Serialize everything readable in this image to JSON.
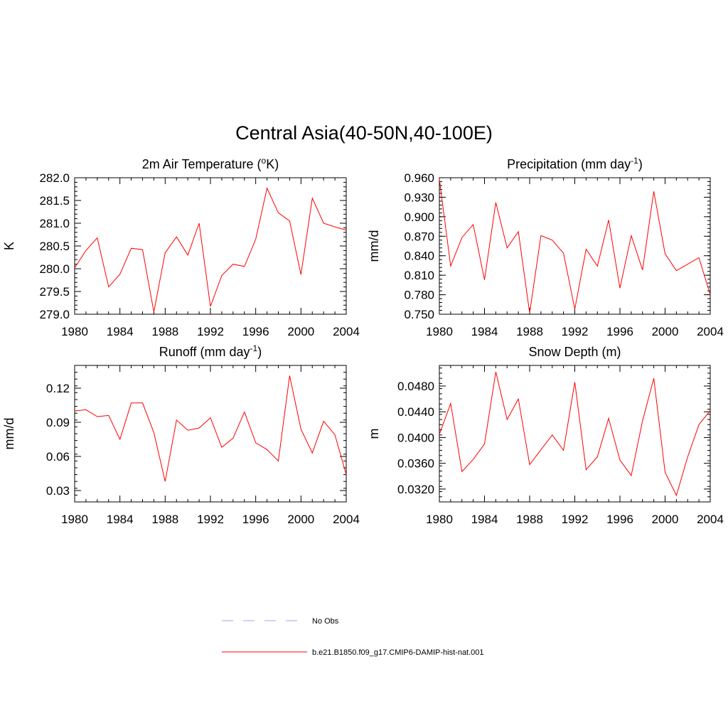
{
  "figure": {
    "title": "Central Asia(40-50N,40-100E)"
  },
  "colors": {
    "model_line": "#ff0000",
    "obs_line": "#a0a0ff",
    "axis": "#000000"
  },
  "legend": {
    "placement": "bottom-center",
    "entries": [
      {
        "label": "No Obs",
        "style": "dashed",
        "color": "#a0a0ff"
      },
      {
        "label": "b.e21.B1850.f09_g17.CMIP6-DAMIP-hist-nat.001",
        "style": "solid",
        "color": "#ff0000"
      }
    ]
  },
  "chart_data": [
    {
      "type": "line",
      "title": "2m Air Temperature (",
      "title_sup": "o",
      "title_suffix": "K)",
      "ylabel": "K",
      "xlim": [
        1980,
        2004
      ],
      "ylim": [
        279.0,
        282.0
      ],
      "xticks": [
        1980,
        1984,
        1988,
        1992,
        1996,
        2000,
        2004
      ],
      "yticks": [
        279.0,
        279.5,
        280.0,
        280.5,
        281.0,
        281.5,
        282.0
      ],
      "ytick_labels": [
        "279.0",
        "279.5",
        "280.0",
        "280.5",
        "281.0",
        "281.5",
        "282.0"
      ],
      "x": [
        1980,
        1981,
        1982,
        1983,
        1984,
        1985,
        1986,
        1987,
        1988,
        1989,
        1990,
        1991,
        1992,
        1993,
        1994,
        1995,
        1996,
        1997,
        1998,
        1999,
        2000,
        2001,
        2002,
        2003,
        2004
      ],
      "series": [
        {
          "values": [
            280.02,
            280.4,
            280.68,
            279.6,
            279.88,
            280.45,
            280.42,
            279.05,
            280.35,
            280.7,
            280.3,
            281.0,
            279.17,
            279.85,
            280.1,
            280.05,
            280.65,
            281.77,
            281.23,
            281.05,
            279.87,
            281.55,
            281.0,
            280.92,
            280.85
          ]
        }
      ]
    },
    {
      "type": "line",
      "title": "Precipitation (mm day",
      "title_sup": "-1",
      "title_suffix": ")",
      "ylabel": "mm/d",
      "xlim": [
        1980,
        2004
      ],
      "ylim": [
        0.75,
        0.96
      ],
      "xticks": [
        1980,
        1984,
        1988,
        1992,
        1996,
        2000,
        2004
      ],
      "yticks": [
        0.75,
        0.78,
        0.81,
        0.84,
        0.87,
        0.9,
        0.93,
        0.96
      ],
      "ytick_labels": [
        "0.750",
        "0.780",
        "0.810",
        "0.840",
        "0.870",
        "0.900",
        "0.930",
        "0.960"
      ],
      "x": [
        1980,
        1981,
        1982,
        1983,
        1984,
        1985,
        1986,
        1987,
        1988,
        1989,
        1990,
        1991,
        1992,
        1993,
        1994,
        1995,
        1996,
        1997,
        1998,
        1999,
        2000,
        2001,
        2002,
        2003,
        2004
      ],
      "series": [
        {
          "values": [
            0.958,
            0.824,
            0.868,
            0.888,
            0.803,
            0.922,
            0.852,
            0.877,
            0.752,
            0.871,
            0.864,
            0.844,
            0.758,
            0.85,
            0.824,
            0.895,
            0.79,
            0.871,
            0.818,
            0.939,
            0.843,
            0.817,
            0.827,
            0.837,
            0.78
          ]
        }
      ]
    },
    {
      "type": "line",
      "title": "Runoff (mm day",
      "title_sup": "-1",
      "title_suffix": ")",
      "ylabel": "mm/d",
      "xlim": [
        1980,
        2004
      ],
      "ylim": [
        0.02,
        0.14
      ],
      "xticks": [
        1980,
        1984,
        1988,
        1992,
        1996,
        2000,
        2004
      ],
      "yticks": [
        0.03,
        0.06,
        0.09,
        0.12
      ],
      "ytick_labels": [
        "0.03",
        "0.06",
        "0.09",
        "0.12"
      ],
      "x": [
        1980,
        1981,
        1982,
        1983,
        1984,
        1985,
        1986,
        1987,
        1988,
        1989,
        1990,
        1991,
        1992,
        1993,
        1994,
        1995,
        1996,
        1997,
        1998,
        1999,
        2000,
        2001,
        2002,
        2003,
        2004
      ],
      "series": [
        {
          "values": [
            0.1,
            0.101,
            0.095,
            0.096,
            0.075,
            0.107,
            0.107,
            0.081,
            0.038,
            0.092,
            0.083,
            0.085,
            0.094,
            0.068,
            0.076,
            0.099,
            0.072,
            0.066,
            0.056,
            0.131,
            0.084,
            0.063,
            0.091,
            0.079,
            0.044
          ]
        }
      ]
    },
    {
      "type": "line",
      "title": "Snow Depth (m)",
      "title_sup": "",
      "title_suffix": "",
      "ylabel": "m",
      "xlim": [
        1980,
        2004
      ],
      "ylim": [
        0.03,
        0.0512
      ],
      "xticks": [
        1980,
        1984,
        1988,
        1992,
        1996,
        2000,
        2004
      ],
      "yticks": [
        0.032,
        0.036,
        0.04,
        0.044,
        0.048
      ],
      "ytick_labels": [
        "0.0320",
        "0.0360",
        "0.0400",
        "0.0440",
        "0.0480"
      ],
      "x": [
        1980,
        1981,
        1982,
        1983,
        1984,
        1985,
        1986,
        1987,
        1988,
        1989,
        1990,
        1991,
        1992,
        1993,
        1994,
        1995,
        1996,
        1997,
        1998,
        1999,
        2000,
        2001,
        2002,
        2003,
        2004
      ],
      "series": [
        {
          "values": [
            0.0405,
            0.0453,
            0.0347,
            0.0366,
            0.039,
            0.0502,
            0.0428,
            0.046,
            0.0358,
            0.0381,
            0.0404,
            0.038,
            0.0486,
            0.035,
            0.037,
            0.043,
            0.0365,
            0.0341,
            0.0426,
            0.0492,
            0.0346,
            0.031,
            0.037,
            0.042,
            0.0442
          ]
        }
      ]
    }
  ]
}
